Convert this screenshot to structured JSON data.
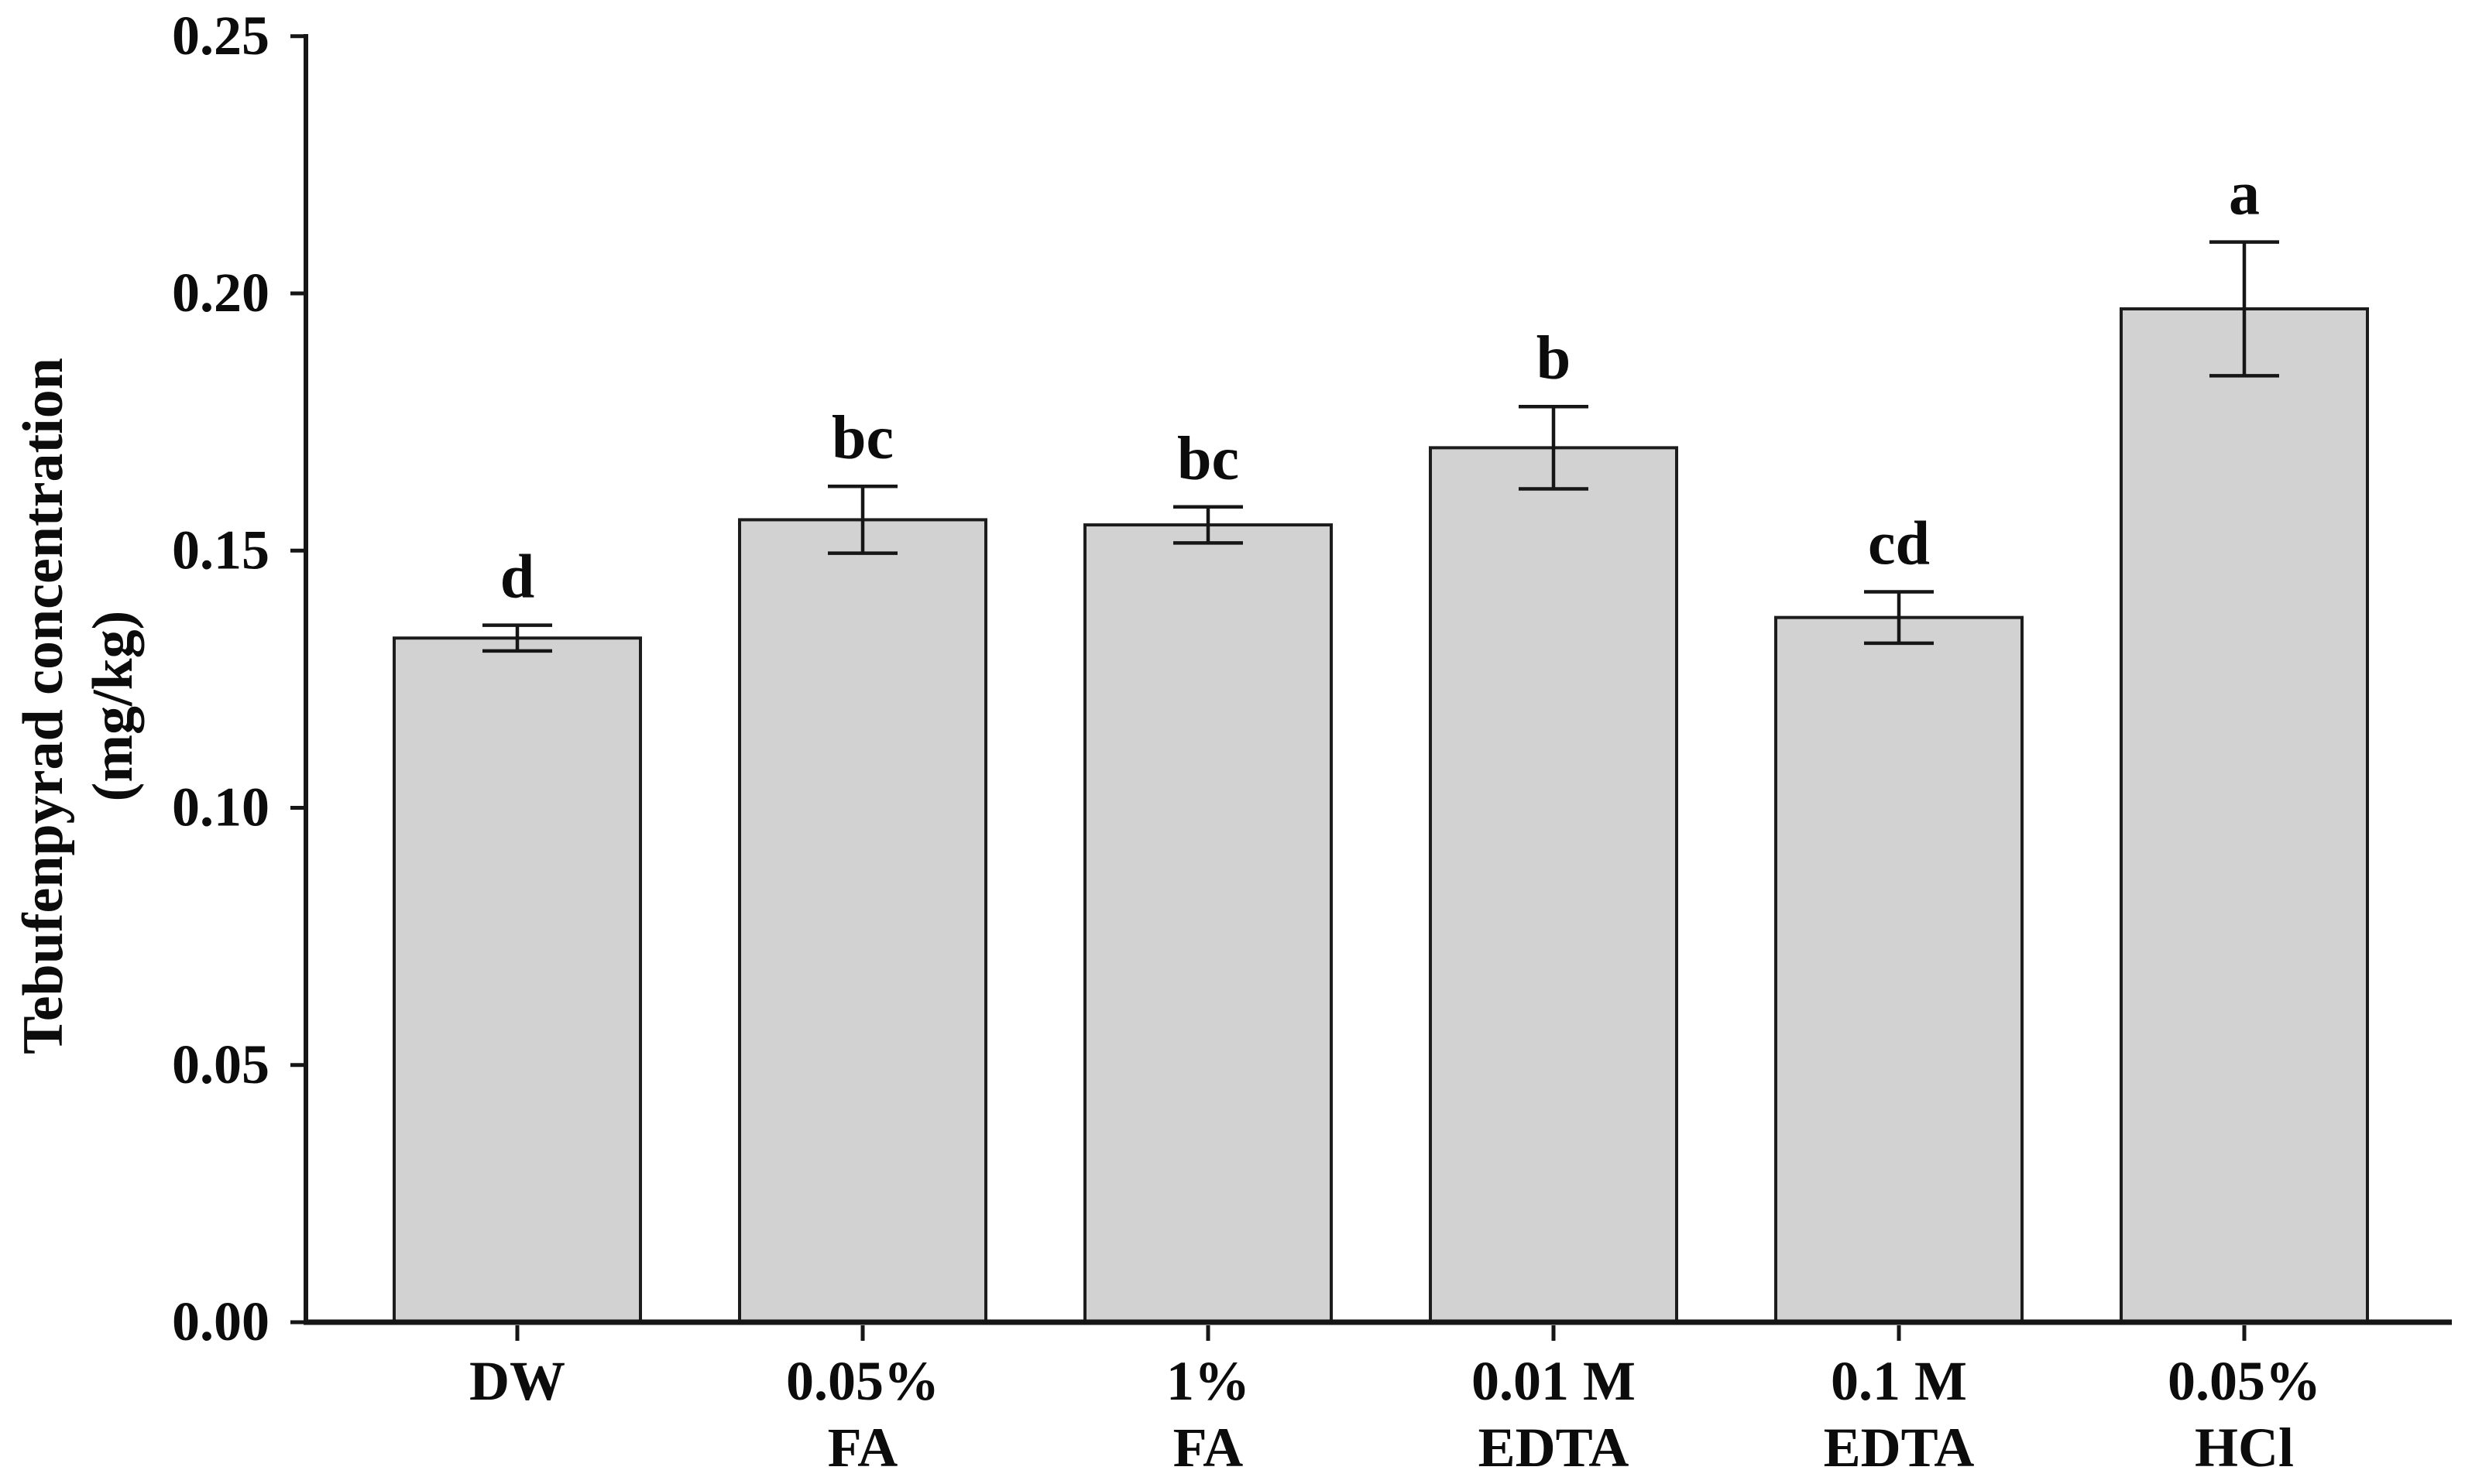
{
  "page": {
    "background": "#ffffff"
  },
  "chart_data": {
    "type": "bar",
    "title": "",
    "xlabel": "",
    "ylabel_lines": [
      "Tebufenpyrad concentration",
      "(mg/kg)"
    ],
    "ylim": [
      0,
      0.25
    ],
    "ytick_step": 0.05,
    "grid": false,
    "legend": "none",
    "yticks": [
      {
        "value": 0.0,
        "label": "0.00"
      },
      {
        "value": 0.05,
        "label": "0.05"
      },
      {
        "value": 0.1,
        "label": "0.10"
      },
      {
        "value": 0.15,
        "label": "0.15"
      },
      {
        "value": 0.2,
        "label": "0.20"
      },
      {
        "value": 0.25,
        "label": "0.25"
      }
    ],
    "categories": [
      [
        "DW"
      ],
      [
        "0.05%",
        "FA"
      ],
      [
        "1%",
        "FA"
      ],
      [
        "0.01 M",
        "EDTA"
      ],
      [
        "0.1 M",
        "EDTA"
      ],
      [
        "0.05%",
        "HCl"
      ]
    ],
    "series": [
      {
        "name": "Tebufenpyrad concentration (mg/kg)",
        "values": [
          0.133,
          0.156,
          0.155,
          0.17,
          0.137,
          0.197
        ],
        "errors": [
          0.0025,
          0.0065,
          0.0035,
          0.008,
          0.005,
          0.013
        ],
        "sig_letters": [
          "d",
          "bc",
          "bc",
          "b",
          "cd",
          "a"
        ]
      }
    ],
    "colors": {
      "bar_fill": "#d2d2d2",
      "bar_edge": "#1c1c1c",
      "axis": "#161616",
      "text": "#0c0c0c"
    }
  }
}
